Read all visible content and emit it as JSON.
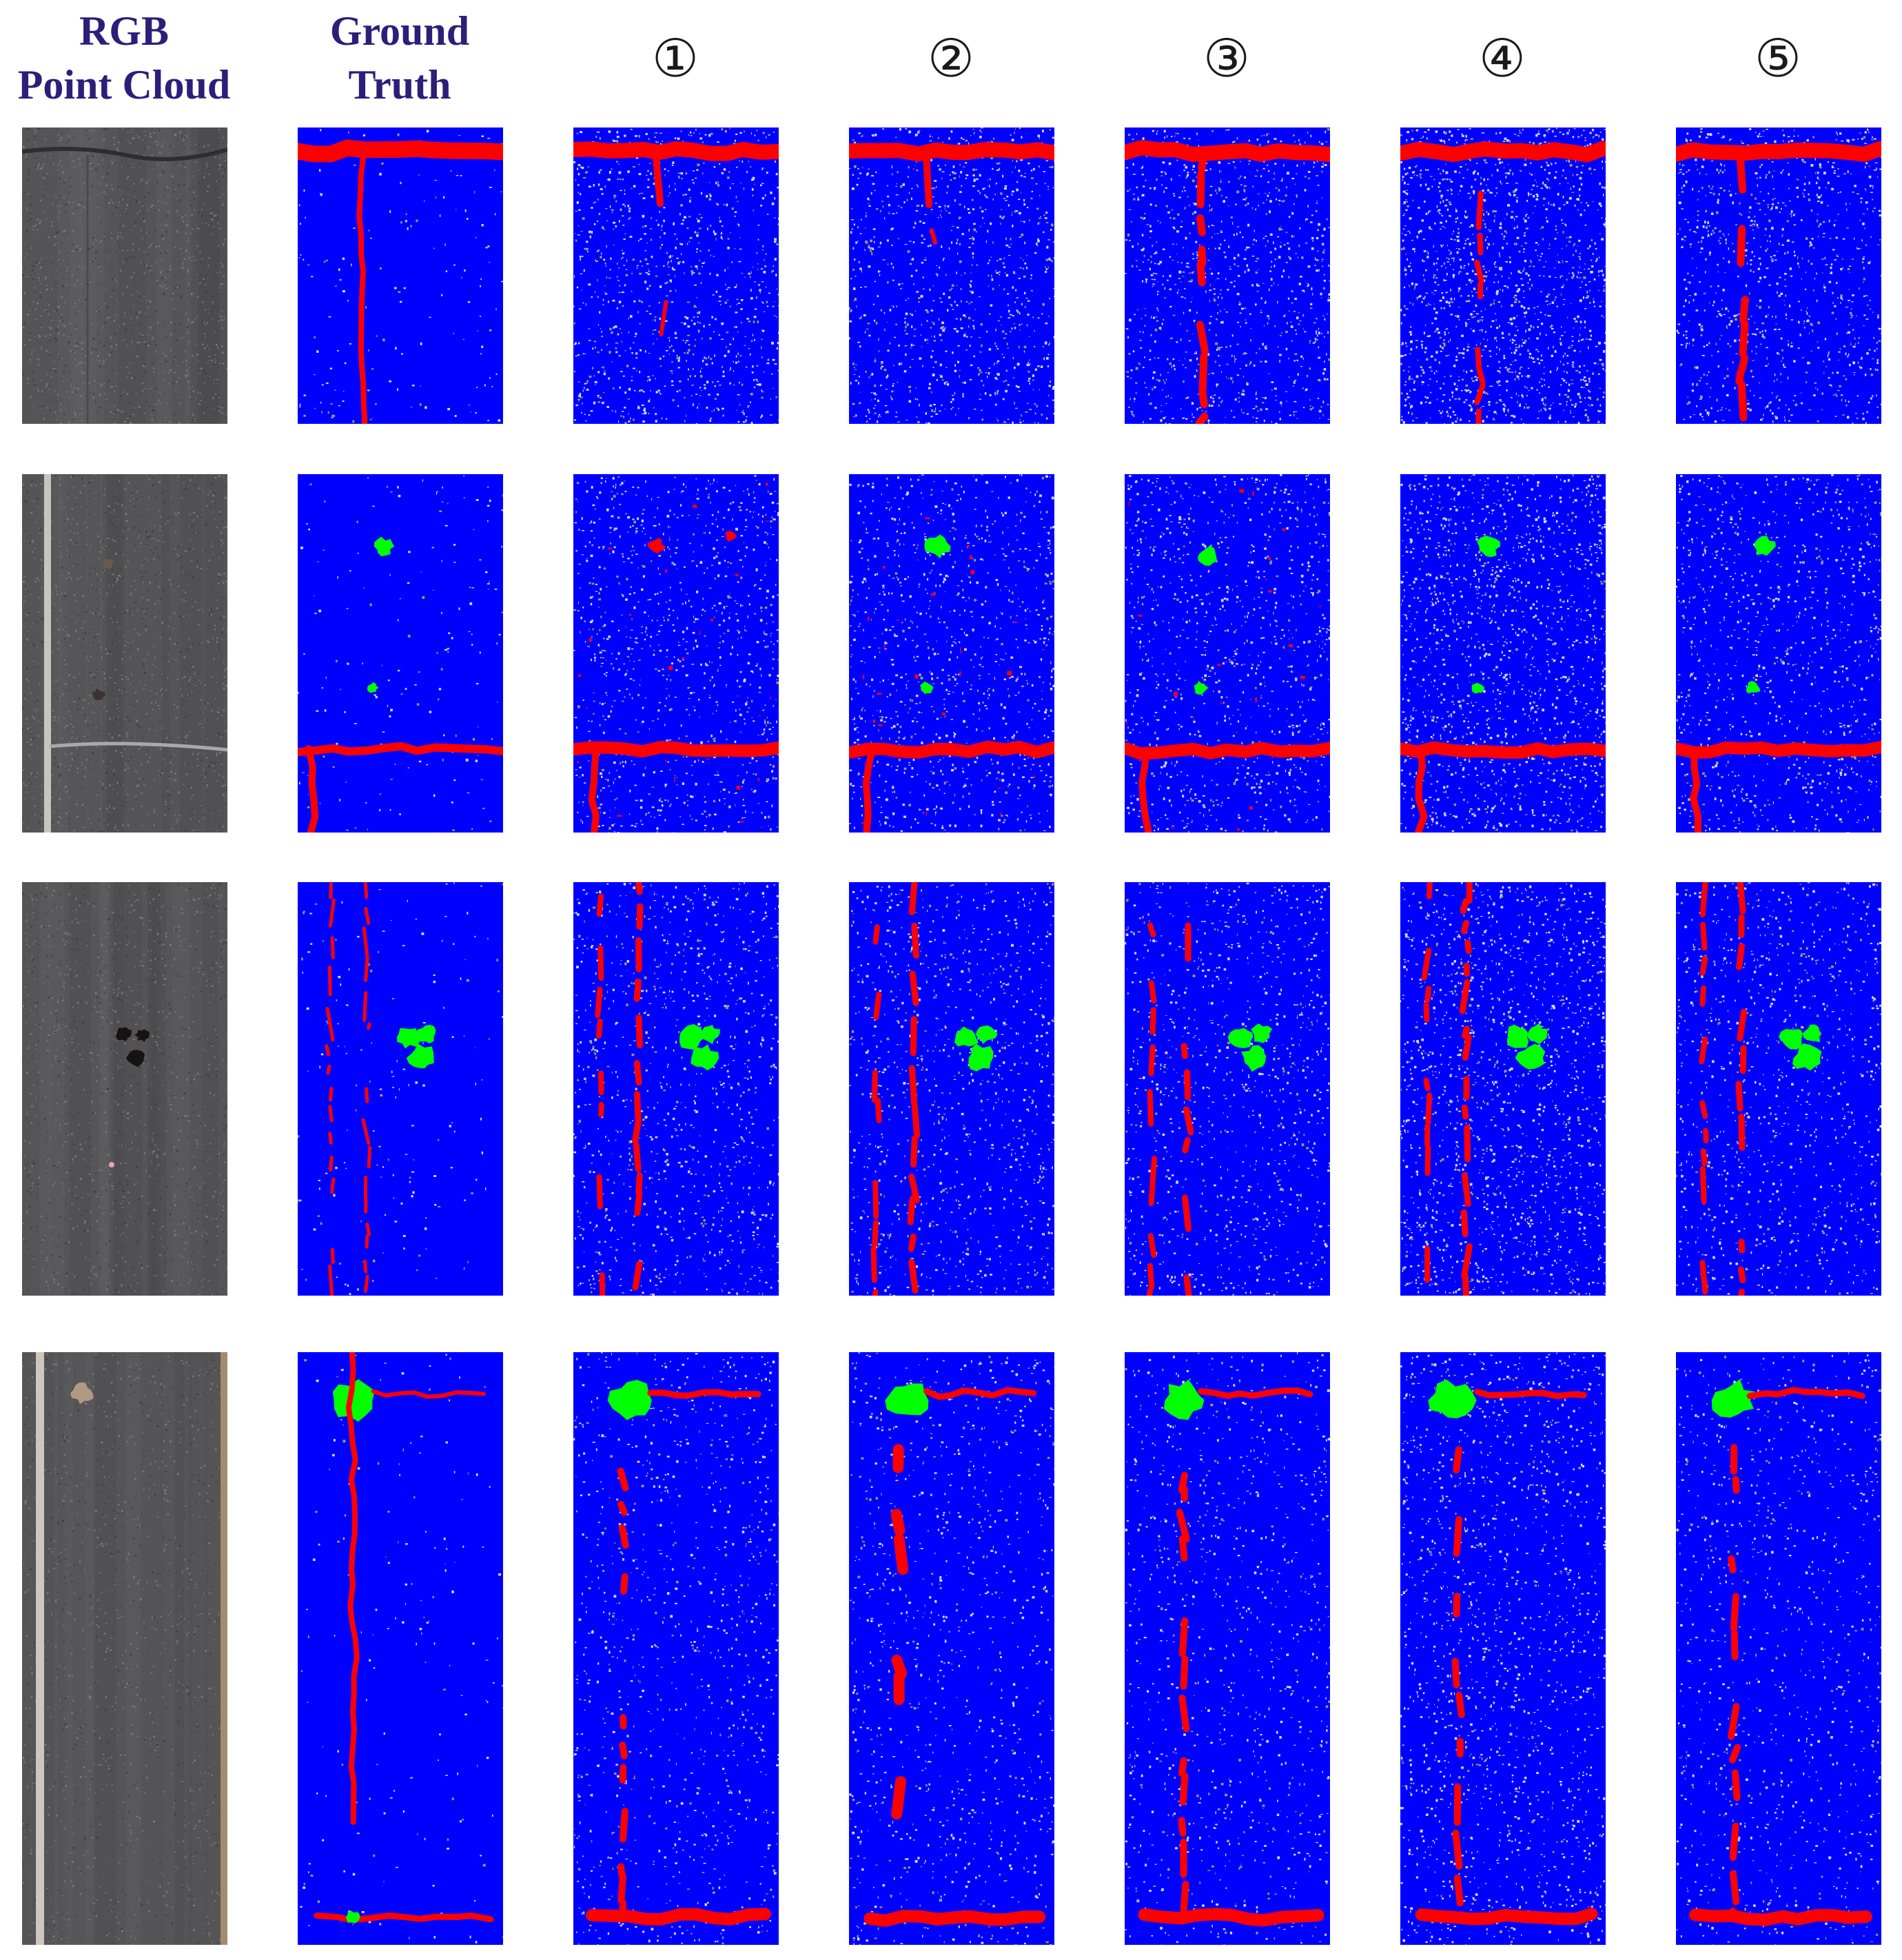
{
  "figure": {
    "column_headers": [
      {
        "id": "rgb",
        "lines": [
          "RGB",
          "Point Cloud"
        ]
      },
      {
        "id": "gt",
        "lines": [
          "Ground",
          "Truth"
        ]
      },
      {
        "id": "m1",
        "lines": [
          "①"
        ]
      },
      {
        "id": "m2",
        "lines": [
          "②"
        ]
      },
      {
        "id": "m3",
        "lines": [
          "③"
        ]
      },
      {
        "id": "m4",
        "lines": [
          "④"
        ]
      },
      {
        "id": "m5",
        "lines": [
          "⑤"
        ]
      }
    ],
    "rows": 4,
    "colors": {
      "background_class": "#0000ff",
      "crack_class": "#ff0000",
      "pothole_class": "#00ff00",
      "unlabeled_noise": "#9c9c6e",
      "pavement_rgb": "#5a5a5a",
      "header_text": "#2b1f7a"
    }
  }
}
